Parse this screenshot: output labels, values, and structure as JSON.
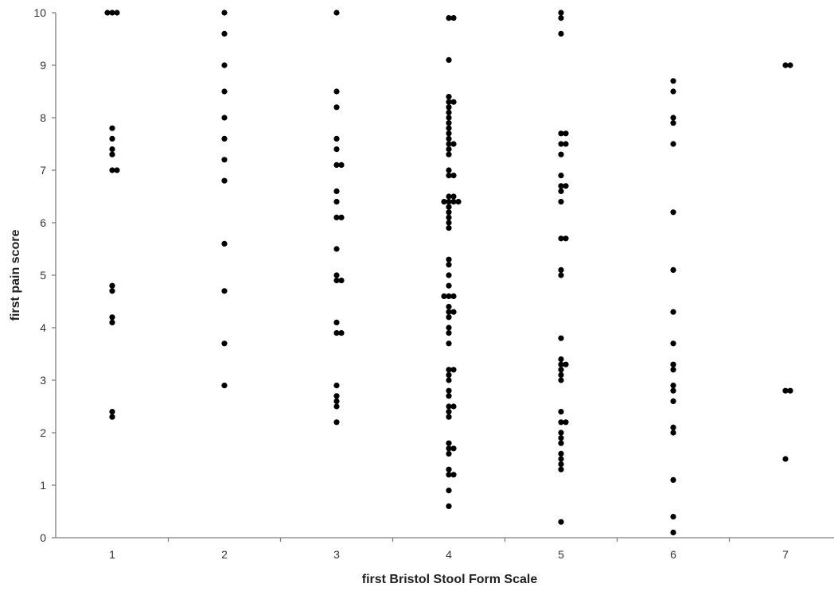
{
  "chart_data": {
    "type": "scatter",
    "title": "",
    "xlabel": "first Bristol Stool Form Scale",
    "ylabel": "first pain score",
    "xlim": [
      0.5,
      7.5
    ],
    "ylim": [
      0,
      10
    ],
    "x_ticks": [
      1,
      2,
      3,
      4,
      5,
      6,
      7
    ],
    "y_ticks": [
      0,
      1,
      2,
      3,
      4,
      5,
      6,
      7,
      8,
      9,
      10
    ],
    "grid": false,
    "legend": "none",
    "marker_color": "#000000",
    "axis_color": "#7f7f7f",
    "series": [
      {
        "points": [
          [
            1,
            10
          ],
          [
            1,
            10
          ],
          [
            1,
            10
          ],
          [
            1,
            7.8
          ],
          [
            1,
            7.6
          ],
          [
            1,
            7.4
          ],
          [
            1,
            7.3
          ],
          [
            1,
            7
          ],
          [
            1,
            7
          ],
          [
            1,
            4.8
          ],
          [
            1,
            4.7
          ],
          [
            1,
            4.2
          ],
          [
            1,
            4.1
          ],
          [
            1,
            2.4
          ],
          [
            1,
            2.3
          ],
          [
            2,
            10
          ],
          [
            2,
            9.6
          ],
          [
            2,
            9
          ],
          [
            2,
            8.5
          ],
          [
            2,
            8
          ],
          [
            2,
            7.6
          ],
          [
            2,
            7.2
          ],
          [
            2,
            6.8
          ],
          [
            2,
            5.6
          ],
          [
            2,
            4.7
          ],
          [
            2,
            3.7
          ],
          [
            2,
            2.9
          ],
          [
            3,
            10
          ],
          [
            3,
            8.5
          ],
          [
            3,
            8.2
          ],
          [
            3,
            7.6
          ],
          [
            3,
            7.4
          ],
          [
            3,
            7.1
          ],
          [
            3,
            7.1
          ],
          [
            3,
            6.6
          ],
          [
            3,
            6.4
          ],
          [
            3,
            6.1
          ],
          [
            3,
            6.1
          ],
          [
            3,
            5.5
          ],
          [
            3,
            5
          ],
          [
            3,
            4.9
          ],
          [
            3,
            4.9
          ],
          [
            3,
            4.1
          ],
          [
            3,
            3.9
          ],
          [
            3,
            3.9
          ],
          [
            3,
            2.9
          ],
          [
            3,
            2.7
          ],
          [
            3,
            2.6
          ],
          [
            3,
            2.5
          ],
          [
            3,
            2.2
          ],
          [
            4,
            9.9
          ],
          [
            4,
            9.9
          ],
          [
            4,
            9.1
          ],
          [
            4,
            8.4
          ],
          [
            4,
            8.3
          ],
          [
            4,
            8.3
          ],
          [
            4,
            8.2
          ],
          [
            4,
            8.1
          ],
          [
            4,
            8
          ],
          [
            4,
            7.9
          ],
          [
            4,
            7.8
          ],
          [
            4,
            7.7
          ],
          [
            4,
            7.6
          ],
          [
            4,
            7.5
          ],
          [
            4,
            7.5
          ],
          [
            4,
            7.4
          ],
          [
            4,
            7.3
          ],
          [
            4,
            7
          ],
          [
            4,
            6.9
          ],
          [
            4,
            6.9
          ],
          [
            4,
            6.5
          ],
          [
            4,
            6.5
          ],
          [
            4,
            6.4
          ],
          [
            4,
            6.4
          ],
          [
            4,
            6.4
          ],
          [
            4,
            6.4
          ],
          [
            4,
            6.3
          ],
          [
            4,
            6.2
          ],
          [
            4,
            6.1
          ],
          [
            4,
            6
          ],
          [
            4,
            5.9
          ],
          [
            4,
            5.3
          ],
          [
            4,
            5.2
          ],
          [
            4,
            5
          ],
          [
            4,
            4.8
          ],
          [
            4,
            4.6
          ],
          [
            4,
            4.6
          ],
          [
            4,
            4.6
          ],
          [
            4,
            4.4
          ],
          [
            4,
            4.3
          ],
          [
            4,
            4.3
          ],
          [
            4,
            4.2
          ],
          [
            4,
            4
          ],
          [
            4,
            3.9
          ],
          [
            4,
            3.7
          ],
          [
            4,
            3.2
          ],
          [
            4,
            3.2
          ],
          [
            4,
            3.1
          ],
          [
            4,
            3
          ],
          [
            4,
            2.8
          ],
          [
            4,
            2.7
          ],
          [
            4,
            2.5
          ],
          [
            4,
            2.5
          ],
          [
            4,
            2.4
          ],
          [
            4,
            2.3
          ],
          [
            4,
            1.8
          ],
          [
            4,
            1.7
          ],
          [
            4,
            1.7
          ],
          [
            4,
            1.6
          ],
          [
            4,
            1.3
          ],
          [
            4,
            1.2
          ],
          [
            4,
            1.2
          ],
          [
            4,
            0.9
          ],
          [
            4,
            0.6
          ],
          [
            5,
            10
          ],
          [
            5,
            9.9
          ],
          [
            5,
            9.6
          ],
          [
            5,
            7.7
          ],
          [
            5,
            7.7
          ],
          [
            5,
            7.5
          ],
          [
            5,
            7.5
          ],
          [
            5,
            7.3
          ],
          [
            5,
            6.9
          ],
          [
            5,
            6.7
          ],
          [
            5,
            6.7
          ],
          [
            5,
            6.6
          ],
          [
            5,
            6.4
          ],
          [
            5,
            5.7
          ],
          [
            5,
            5.7
          ],
          [
            5,
            5.1
          ],
          [
            5,
            5
          ],
          [
            5,
            3.8
          ],
          [
            5,
            3.4
          ],
          [
            5,
            3.3
          ],
          [
            5,
            3.3
          ],
          [
            5,
            3.2
          ],
          [
            5,
            3.1
          ],
          [
            5,
            3
          ],
          [
            5,
            2.4
          ],
          [
            5,
            2.2
          ],
          [
            5,
            2.2
          ],
          [
            5,
            2
          ],
          [
            5,
            1.9
          ],
          [
            5,
            1.8
          ],
          [
            5,
            1.6
          ],
          [
            5,
            1.5
          ],
          [
            5,
            1.4
          ],
          [
            5,
            1.3
          ],
          [
            5,
            0.3
          ],
          [
            6,
            8.7
          ],
          [
            6,
            8.5
          ],
          [
            6,
            8
          ],
          [
            6,
            7.9
          ],
          [
            6,
            7.5
          ],
          [
            6,
            6.2
          ],
          [
            6,
            5.1
          ],
          [
            6,
            4.3
          ],
          [
            6,
            3.7
          ],
          [
            6,
            3.3
          ],
          [
            6,
            3.2
          ],
          [
            6,
            2.9
          ],
          [
            6,
            2.8
          ],
          [
            6,
            2.6
          ],
          [
            6,
            2.1
          ],
          [
            6,
            2
          ],
          [
            6,
            1.1
          ],
          [
            6,
            0.4
          ],
          [
            6,
            0.1
          ],
          [
            7,
            9
          ],
          [
            7,
            9
          ],
          [
            7,
            2.8
          ],
          [
            7,
            2.8
          ],
          [
            7,
            1.5
          ]
        ]
      }
    ]
  }
}
